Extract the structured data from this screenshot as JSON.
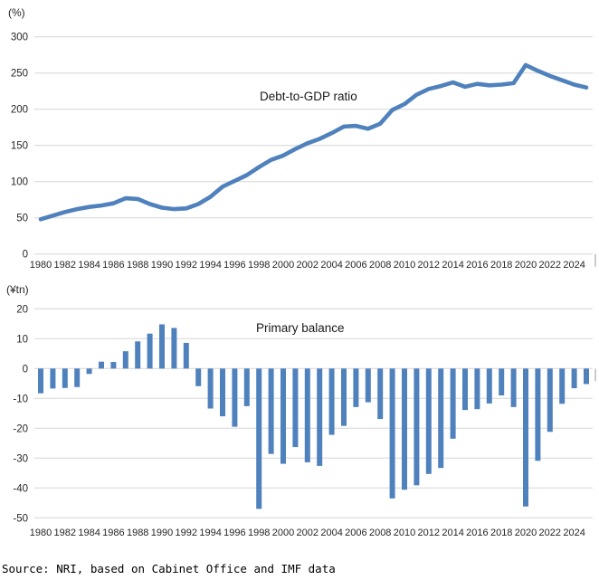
{
  "source_note": "Source: NRI, based on Cabinet Office and IMF data",
  "colors": {
    "series_blue": "#4F81BD",
    "gridline": "#D5D5D5",
    "axis_tick": "#9A9A9A",
    "tick_text": "#262626"
  },
  "chart_data": [
    {
      "type": "line",
      "title": "Debt-to-GDP ratio",
      "unit_label": "(%)",
      "ylim": [
        0,
        300
      ],
      "ytick_step": 50,
      "yticks": [
        0,
        50,
        100,
        150,
        200,
        250,
        300
      ],
      "grid": true,
      "legend": "inline-text-label",
      "x": [
        1980,
        1981,
        1982,
        1983,
        1984,
        1985,
        1986,
        1987,
        1988,
        1989,
        1990,
        1991,
        1992,
        1993,
        1994,
        1995,
        1996,
        1997,
        1998,
        1999,
        2000,
        2001,
        2002,
        2003,
        2004,
        2005,
        2006,
        2007,
        2008,
        2009,
        2010,
        2011,
        2012,
        2013,
        2014,
        2015,
        2016,
        2017,
        2018,
        2019,
        2020,
        2021,
        2022,
        2023,
        2024,
        2025
      ],
      "x_tick_labels": [
        "1980",
        "1982",
        "1984",
        "1986",
        "1988",
        "1990",
        "1992",
        "1994",
        "1996",
        "1998",
        "2000",
        "2002",
        "2004",
        "2006",
        "2008",
        "2010",
        "2012",
        "2014",
        "2016",
        "2018",
        "2020",
        "2022",
        "2024"
      ],
      "series": [
        {
          "name": "Debt-to-GDP ratio",
          "values": [
            48,
            53,
            58,
            62,
            65,
            67,
            70,
            77,
            76,
            69,
            64,
            62,
            63,
            69,
            79,
            93,
            101,
            109,
            120,
            130,
            136,
            145,
            153,
            159,
            167,
            176,
            177,
            173,
            180,
            199,
            207,
            220,
            228,
            232,
            237,
            231,
            235,
            233,
            234,
            236,
            261,
            253,
            246,
            240,
            234,
            230
          ]
        }
      ]
    },
    {
      "type": "bar",
      "title": "Primary balance",
      "unit_label": "(¥tn)",
      "ylim": [
        -50,
        20
      ],
      "ytick_step": 10,
      "yticks": [
        20,
        10,
        0,
        -10,
        -20,
        -30,
        -40,
        -50
      ],
      "grid": true,
      "legend": "inline-text-label",
      "x": [
        1980,
        1981,
        1982,
        1983,
        1984,
        1985,
        1986,
        1987,
        1988,
        1989,
        1990,
        1991,
        1992,
        1993,
        1994,
        1995,
        1996,
        1997,
        1998,
        1999,
        2000,
        2001,
        2002,
        2003,
        2004,
        2005,
        2006,
        2007,
        2008,
        2009,
        2010,
        2011,
        2012,
        2013,
        2014,
        2015,
        2016,
        2017,
        2018,
        2019,
        2020,
        2021,
        2022,
        2023,
        2024,
        2025
      ],
      "x_tick_labels": [
        "1980",
        "1982",
        "1984",
        "1986",
        "1988",
        "1990",
        "1992",
        "1994",
        "1996",
        "1998",
        "2000",
        "2002",
        "2004",
        "2006",
        "2008",
        "2010",
        "2012",
        "2014",
        "2016",
        "2018",
        "2020",
        "2022",
        "2024"
      ],
      "series": [
        {
          "name": "Primary balance",
          "values": [
            -8.3,
            -6.7,
            -6.5,
            -6.2,
            -1.8,
            2.3,
            2.2,
            5.8,
            9.1,
            11.7,
            14.8,
            13.6,
            8.6,
            -5.9,
            -13.4,
            -16.0,
            -19.5,
            -12.6,
            -47.0,
            -28.6,
            -31.9,
            -26.3,
            -31.4,
            -32.6,
            -22.2,
            -19.2,
            -12.9,
            -11.3,
            -16.9,
            -43.5,
            -40.6,
            -39.1,
            -35.3,
            -33.3,
            -23.5,
            -13.9,
            -13.6,
            -11.7,
            -9.0,
            -12.9,
            -46.2,
            -30.9,
            -21.2,
            -11.8,
            -6.6,
            -5.2
          ]
        }
      ]
    }
  ]
}
